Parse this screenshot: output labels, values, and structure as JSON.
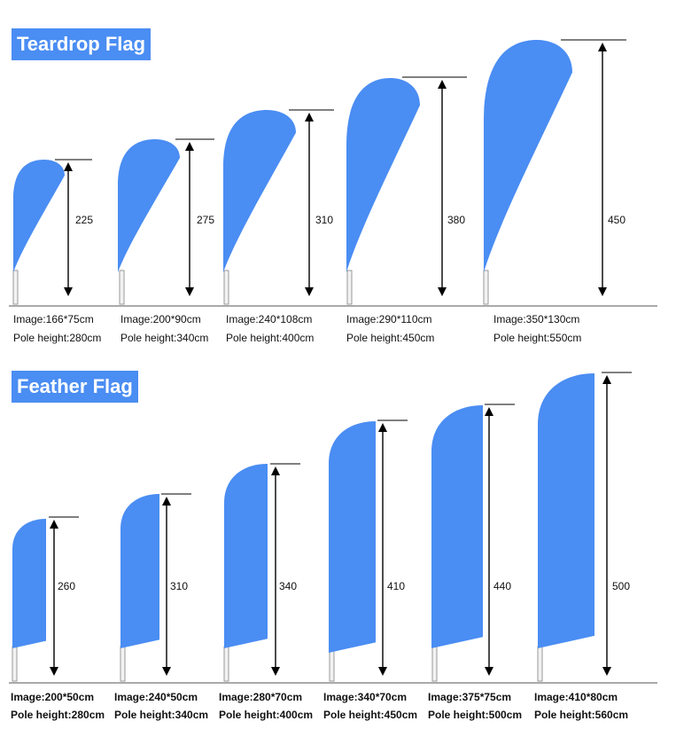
{
  "sections": [
    {
      "title": "Teardrop Flag",
      "flags": [
        {
          "height": "225",
          "image": "Image:166*75cm",
          "pole": "Pole height:280cm"
        },
        {
          "height": "275",
          "image": "Image:200*90cm",
          "pole": "Pole height:340cm"
        },
        {
          "height": "310",
          "image": "Image:240*108cm",
          "pole": "Pole height:400cm"
        },
        {
          "height": "380",
          "image": "Image:290*110cm",
          "pole": "Pole height:450cm"
        },
        {
          "height": "450",
          "image": "Image:350*130cm",
          "pole": "Pole height:550cm"
        }
      ]
    },
    {
      "title": "Feather Flag",
      "flags": [
        {
          "height": "260",
          "image": "Image:200*50cm",
          "pole": "Pole height:280cm"
        },
        {
          "height": "310",
          "image": "Image:240*50cm",
          "pole": "Pole height:340cm"
        },
        {
          "height": "340",
          "image": "Image:280*70cm",
          "pole": "Pole height:400cm"
        },
        {
          "height": "410",
          "image": "Image:340*70cm",
          "pole": "Pole height:450cm"
        },
        {
          "height": "440",
          "image": "Image:375*75cm",
          "pole": "Pole height:500cm"
        },
        {
          "height": "500",
          "image": "Image:410*80cm",
          "pole": "Pole height:560cm"
        }
      ]
    }
  ],
  "colors": {
    "flag": "#4a8df3",
    "title_bg": "#4a8df3",
    "line": "#000000"
  }
}
